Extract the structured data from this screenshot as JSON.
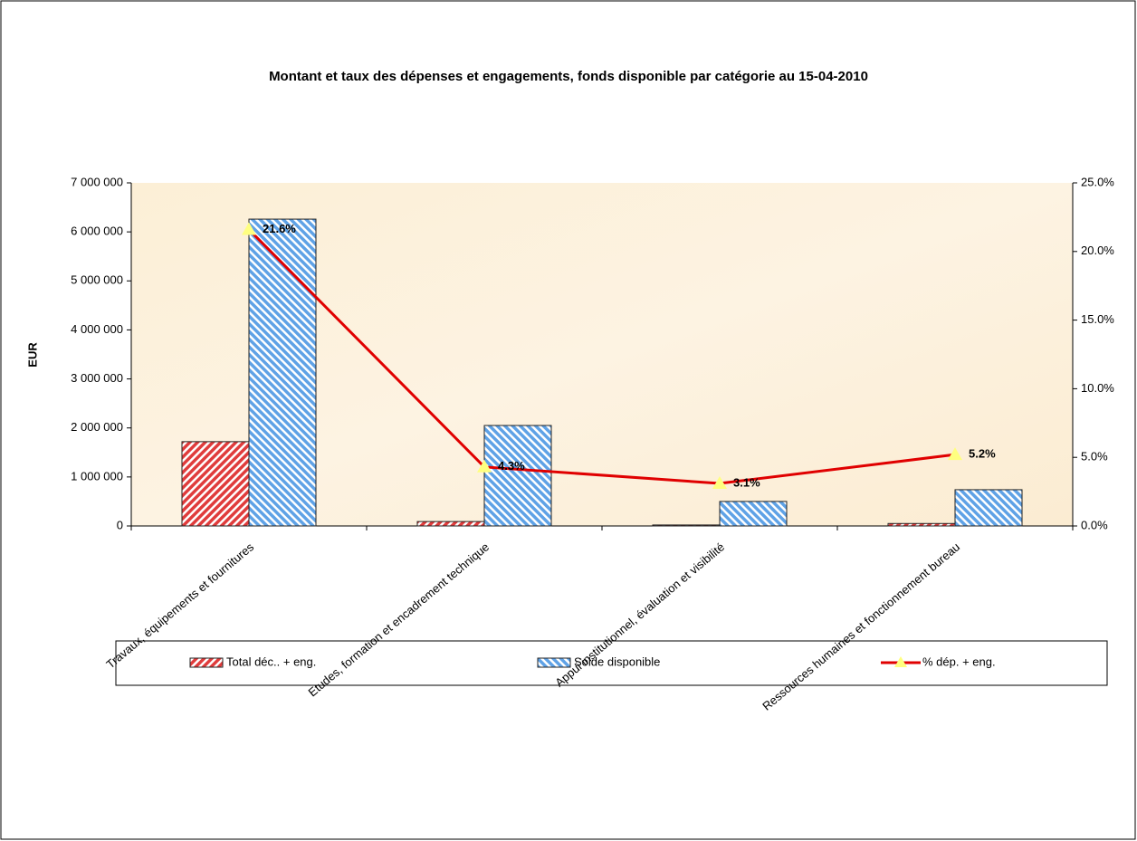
{
  "chart_data": {
    "type": "bar",
    "title": "Montant et taux des dépenses et engagements,  fonds disponible par catégorie  au 15-04-2010",
    "ylabel": "EUR",
    "categories": [
      "Travaux, équipements et fournitures",
      "Etudes, formation et encadrement technique",
      "Appui institutionnel, évaluation et visibilité",
      "Ressources humaines et fonctionnement bureau"
    ],
    "series": [
      {
        "name": "Total déc.. + eng.",
        "color": "#e03c3c",
        "type": "bar",
        "values": [
          1720000,
          90000,
          20000,
          50000
        ]
      },
      {
        "name": "Solde disponible",
        "color": "#5fa2e6",
        "type": "bar",
        "values": [
          6260000,
          2050000,
          500000,
          740000
        ]
      },
      {
        "name": "% dép. + eng.",
        "color": "#e00000",
        "type": "line",
        "axis": "y2",
        "marker_color": "#ffff80",
        "values": [
          21.6,
          4.3,
          3.1,
          5.2
        ],
        "value_labels": [
          "21.6%",
          "4.3%",
          "3.1%",
          "5.2%"
        ]
      }
    ],
    "ylim": [
      0,
      7000000
    ],
    "yticks": [
      0,
      {
        "value": 1000000,
        "label": "1 000 000"
      },
      {
        "value": 2000000,
        "label": "2 000 000"
      },
      {
        "value": 3000000,
        "label": "3 000 000"
      },
      {
        "value": 4000000,
        "label": "4 000 000"
      },
      {
        "value": 5000000,
        "label": "5 000 000"
      },
      {
        "value": 6000000,
        "label": "6 000 000"
      },
      {
        "value": 7000000,
        "label": "7 000 000"
      }
    ],
    "y2lim": [
      0,
      25
    ],
    "y2ticks": [
      {
        "value": 0,
        "label": "0.0%"
      },
      {
        "value": 5,
        "label": "5.0%"
      },
      {
        "value": 10,
        "label": "10.0%"
      },
      {
        "value": 15,
        "label": "15.0%"
      },
      {
        "value": 20,
        "label": "20.0%"
      },
      {
        "value": 25,
        "label": "25.0%"
      }
    ],
    "legend": "bottom"
  }
}
